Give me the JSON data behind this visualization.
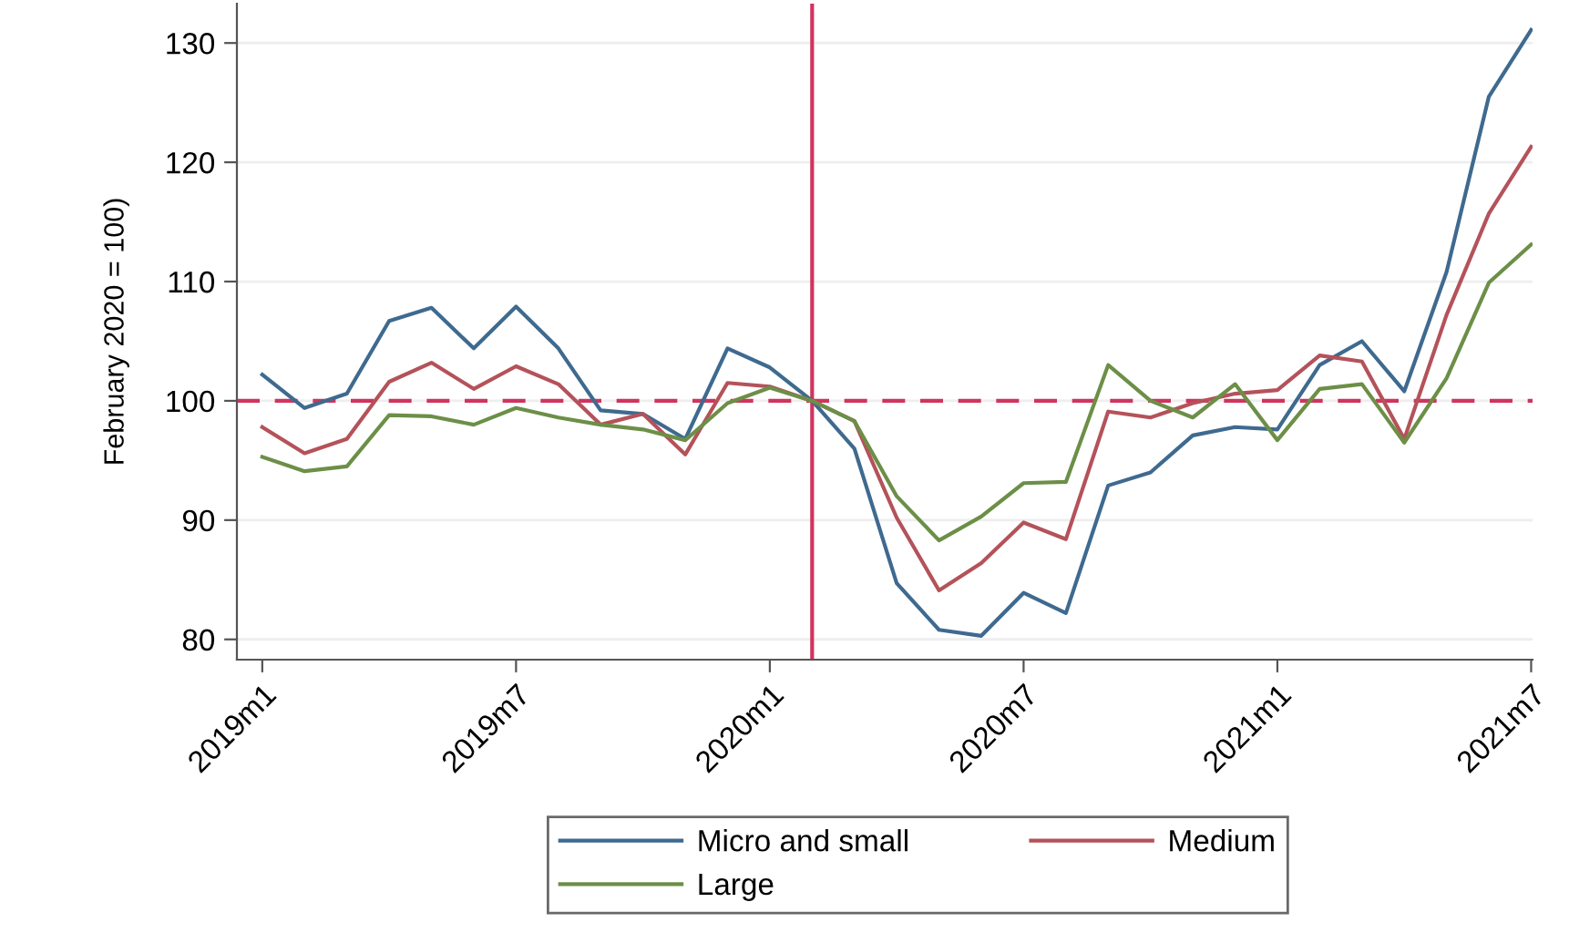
{
  "chart_data": {
    "type": "line",
    "ylabel": "February 2020 = 100)",
    "x": [
      "2019-01",
      "2019-02",
      "2019-03",
      "2019-04",
      "2019-05",
      "2019-06",
      "2019-07",
      "2019-08",
      "2019-09",
      "2019-10",
      "2019-11",
      "2019-12",
      "2020-01",
      "2020-02",
      "2020-03",
      "2020-04",
      "2020-05",
      "2020-06",
      "2020-07",
      "2020-08",
      "2020-09",
      "2020-10",
      "2020-11",
      "2020-12",
      "2021-01",
      "2021-02",
      "2021-03",
      "2021-04",
      "2021-05",
      "2021-06",
      "2021-07"
    ],
    "series": [
      {
        "name": "Micro and small",
        "color": "#3f6a8f",
        "values": [
          102.2,
          99.4,
          100.6,
          106.7,
          107.8,
          104.4,
          107.9,
          104.4,
          99.2,
          98.9,
          96.8,
          104.4,
          102.8,
          100,
          96.0,
          84.7,
          80.8,
          80.3,
          83.9,
          82.2,
          92.9,
          94.0,
          97.1,
          97.8,
          97.6,
          103.0,
          105.0,
          100.8,
          110.8,
          125.5,
          131.1
        ]
      },
      {
        "name": "Medium",
        "color": "#b4525a",
        "values": [
          97.8,
          95.6,
          96.8,
          101.6,
          103.2,
          101.0,
          102.9,
          101.4,
          98.0,
          98.9,
          95.5,
          101.5,
          101.2,
          100,
          98.3,
          90.2,
          84.1,
          86.4,
          89.8,
          88.4,
          99.1,
          98.6,
          99.8,
          100.6,
          100.9,
          103.8,
          103.3,
          96.8,
          107.2,
          115.7,
          121.3
        ]
      },
      {
        "name": "Large",
        "color": "#6c8f47",
        "values": [
          95.3,
          94.1,
          94.5,
          98.8,
          98.7,
          98.0,
          99.4,
          98.6,
          98.0,
          97.6,
          96.7,
          99.8,
          101.1,
          100,
          98.3,
          92.0,
          88.3,
          90.3,
          93.1,
          93.2,
          103.0,
          100.0,
          98.6,
          101.4,
          96.7,
          101.0,
          101.4,
          96.5,
          101.9,
          109.9,
          113.1
        ]
      }
    ],
    "xlim": [
      "2018-12-13",
      "2021-07-02"
    ],
    "xticks": [
      {
        "value": "2019-01",
        "label": "2019m1"
      },
      {
        "value": "2019-07",
        "label": "2019m7"
      },
      {
        "value": "2020-01",
        "label": "2020m1"
      },
      {
        "value": "2020-07",
        "label": "2020m7"
      },
      {
        "value": "2021-01",
        "label": "2021m1"
      },
      {
        "value": "2021-07",
        "label": "2021m7"
      }
    ],
    "ylim": [
      78.3,
      133.3
    ],
    "yticks": [
      80,
      90,
      100,
      110,
      120,
      130
    ],
    "ref_lines": [
      {
        "axis": "x",
        "value": "2020-02",
        "color": "#d0345e",
        "line_style": "solid"
      },
      {
        "axis": "y",
        "value": 100,
        "color": "#d0345e",
        "line_style": "dashed"
      }
    ],
    "grid": "y",
    "legend": "bottom",
    "line_style": "solid",
    "marker": "none"
  }
}
